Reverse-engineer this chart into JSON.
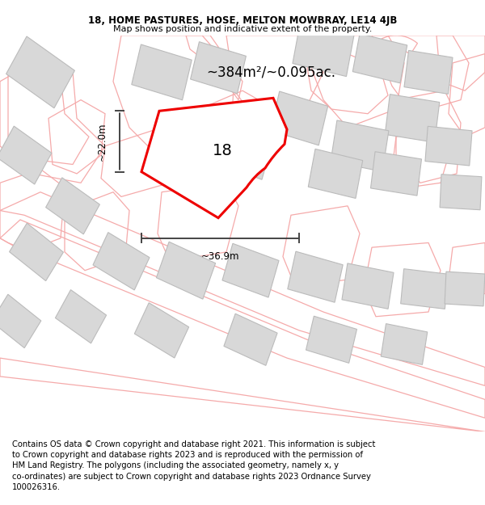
{
  "title_line1": "18, HOME PASTURES, HOSE, MELTON MOWBRAY, LE14 4JB",
  "title_line2": "Map shows position and indicative extent of the property.",
  "area_label": "~384m²/~0.095ac.",
  "width_label": "~36.9m",
  "height_label": "~22.0m",
  "plot_number": "18",
  "footer_text": "Contains OS data © Crown copyright and database right 2021. This information is subject to Crown copyright and database rights 2023 and is reproduced with the permission of HM Land Registry. The polygons (including the associated geometry, namely x, y co-ordinates) are subject to Crown copyright and database rights 2023 Ordnance Survey 100026316.",
  "bg_color": "#ffffff",
  "map_bg": "#ffffff",
  "building_fill": "#d8d8d8",
  "building_edge": "#bbbbbb",
  "road_color": "#f5aaaa",
  "plot_edge_color": "#ee0000",
  "plot_fill": "#ffffff",
  "dimension_line_color": "#444444",
  "title_fontsize": 8.5,
  "subtitle_fontsize": 8.0,
  "area_fontsize": 12,
  "number_fontsize": 14,
  "footer_fontsize": 7.2,
  "dim_label_fontsize": 8.5
}
